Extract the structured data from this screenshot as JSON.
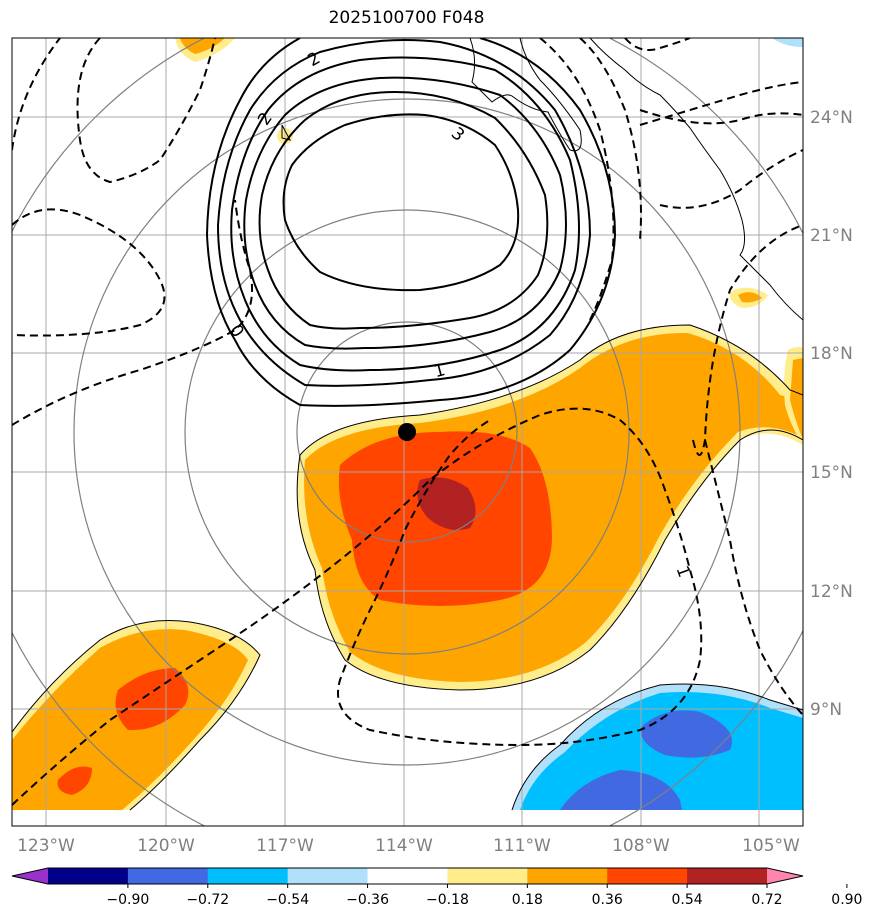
{
  "title": "2025100700 F048",
  "lon_labels": [
    "123°W",
    "120°W",
    "117°W",
    "114°W",
    "111°W",
    "108°W",
    "105°W"
  ],
  "lat_labels": [
    "24°N",
    "21°N",
    "18°N",
    "15°N",
    "12°N",
    "9°N"
  ],
  "contour_labels": [
    "2",
    "2",
    "3",
    "0",
    "1",
    "1"
  ],
  "colorbar": {
    "ticks": [
      "−0.90",
      "−0.72",
      "−0.54",
      "−0.36",
      "−0.18",
      "0.18",
      "0.36",
      "0.54",
      "0.72",
      "0.90"
    ],
    "colors": [
      "#9932cc",
      "#00008b",
      "#4169e1",
      "#00bfff",
      "#b0e0fa",
      "#ffffff",
      "#ffec8b",
      "#ffa500",
      "#ff4500",
      "#b22222",
      "#ff85b0"
    ]
  },
  "fill_colors": {
    "c018": "#ffec8b",
    "c036": "#ffa500",
    "c054": "#ff4500",
    "c072": "#b22222",
    "n018": "#b0e0fa",
    "n036": "#00bfff",
    "n054": "#4169e1"
  },
  "center_marker": "storm-center-dot"
}
